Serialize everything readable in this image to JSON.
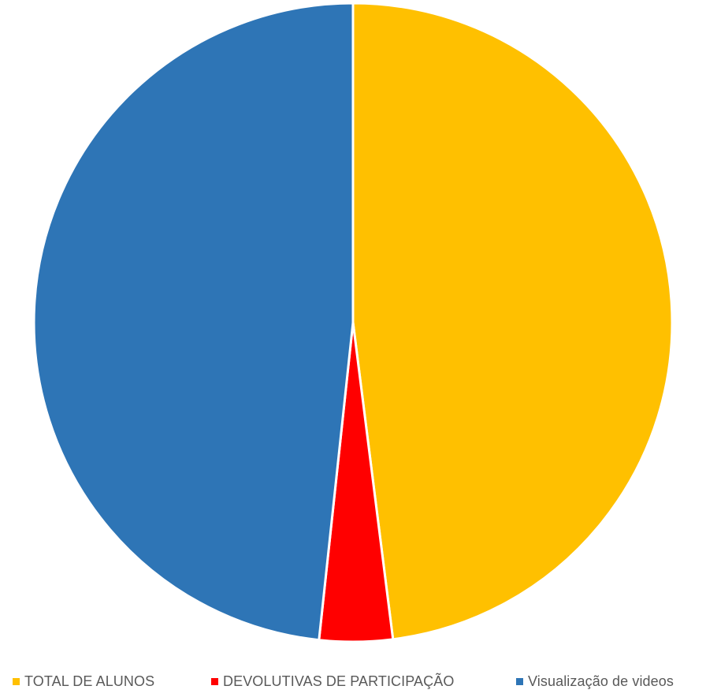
{
  "chart_data": {
    "type": "pie",
    "title": "",
    "start_angle_deg": 0,
    "direction": "clockwise",
    "legend_position": "bottom",
    "slices": [
      {
        "label": "TOTAL DE ALUNOS",
        "value": 48,
        "color": "#FFC000"
      },
      {
        "label": "DEVOLUTIVAS DE PARTICIPAÇÃO",
        "value": 3.7,
        "color": "#FF0000"
      },
      {
        "label": "Visualização de videos",
        "value": 48.3,
        "color": "#2E75B6"
      }
    ]
  }
}
